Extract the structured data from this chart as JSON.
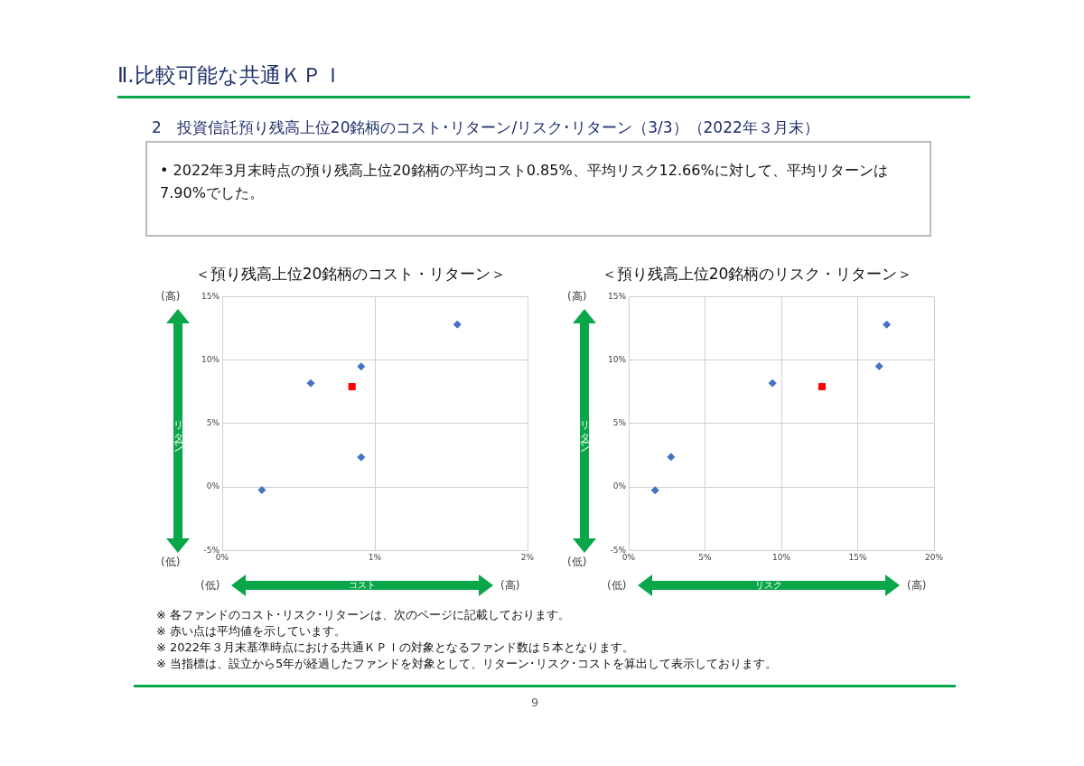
{
  "chart_data": [
    {
      "type": "other",
      "title": "Ⅱ.比較可能な共通ＫＰＩ",
      "subtitle": "2　投資信託預り残高上位20銘柄のコスト･リターン/リスク･リターン（3/3）（2022年３月末）",
      "annotations": [
        "• 2022年3月末時点の預り残高上位20銘柄の平均コスト0.85%、平均リスク12.66%に対して、平均リターンは7.90%でした。"
      ]
    },
    {
      "type": "scatter",
      "title": "＜預り残高上位20銘柄のコスト・リターン＞",
      "xlabel": "コスト",
      "ylabel": "リターン",
      "annotations": [
        "(高)",
        "(低)",
        "(低)",
        "(高)"
      ],
      "xlim": [
        0,
        2
      ],
      "xticks": [
        {
          "value": 0,
          "label": "0%"
        },
        {
          "value": 1,
          "label": "1%"
        },
        {
          "value": 2,
          "label": "2%"
        }
      ],
      "ylim": [
        -5,
        15
      ],
      "yticks": [
        {
          "value": -5,
          "label": "-5%"
        },
        {
          "value": 0,
          "label": "0%"
        },
        {
          "value": 5,
          "label": "5%"
        },
        {
          "value": 10,
          "label": "10%"
        },
        {
          "value": 15,
          "label": "15%"
        }
      ],
      "grid": true,
      "legend": false,
      "series": [
        {
          "color": "#4472c4",
          "marker": "diamond",
          "x": [
            0.26,
            0.58,
            0.91,
            0.91,
            1.54
          ],
          "values": [
            -0.25,
            8.17,
            9.49,
            2.34,
            12.81
          ]
        },
        {
          "color": "#ff0000",
          "marker": "square",
          "x": [
            0.85
          ],
          "values": [
            7.9
          ]
        }
      ]
    },
    {
      "type": "scatter",
      "title": "＜預り残高上位20銘柄のリスク・リターン＞",
      "xlabel": "リスク",
      "ylabel": "リターン",
      "annotations": [
        "(高)",
        "(低)",
        "(低)",
        "(高)"
      ],
      "xlim": [
        0,
        20
      ],
      "xticks": [
        {
          "value": 0,
          "label": "0%"
        },
        {
          "value": 5,
          "label": "5%"
        },
        {
          "value": 10,
          "label": "10%"
        },
        {
          "value": 15,
          "label": "15%"
        },
        {
          "value": 20,
          "label": "20%"
        }
      ],
      "ylim": [
        -5,
        15
      ],
      "yticks": [
        {
          "value": -5,
          "label": "-5%"
        },
        {
          "value": 0,
          "label": "0%"
        },
        {
          "value": 5,
          "label": "5%"
        },
        {
          "value": 10,
          "label": "10%"
        },
        {
          "value": 15,
          "label": "15%"
        }
      ],
      "grid": true,
      "legend": false,
      "series": [
        {
          "color": "#4472c4",
          "marker": "diamond",
          "x": [
            1.73,
            2.77,
            9.42,
            16.4,
            16.9
          ],
          "values": [
            -0.27,
            2.36,
            8.18,
            9.51,
            12.8
          ]
        },
        {
          "color": "#ff0000",
          "marker": "square",
          "x": [
            12.66
          ],
          "values": [
            7.9
          ]
        }
      ]
    },
    {
      "type": "other",
      "annotations": [
        "※ 各ファンドのコスト･リスク･リターンは、次のページに記載しております。",
        "※ 赤い点は平均値を示しています。",
        "※ 2022年３月末基準時点における共通ＫＰＩの対象となるファンド数は５本となります。",
        "※ 当指標は、設立から5年が経過したファンドを対象として、リターン･リスク･コストを算出して表示しております。",
        "9"
      ]
    }
  ]
}
